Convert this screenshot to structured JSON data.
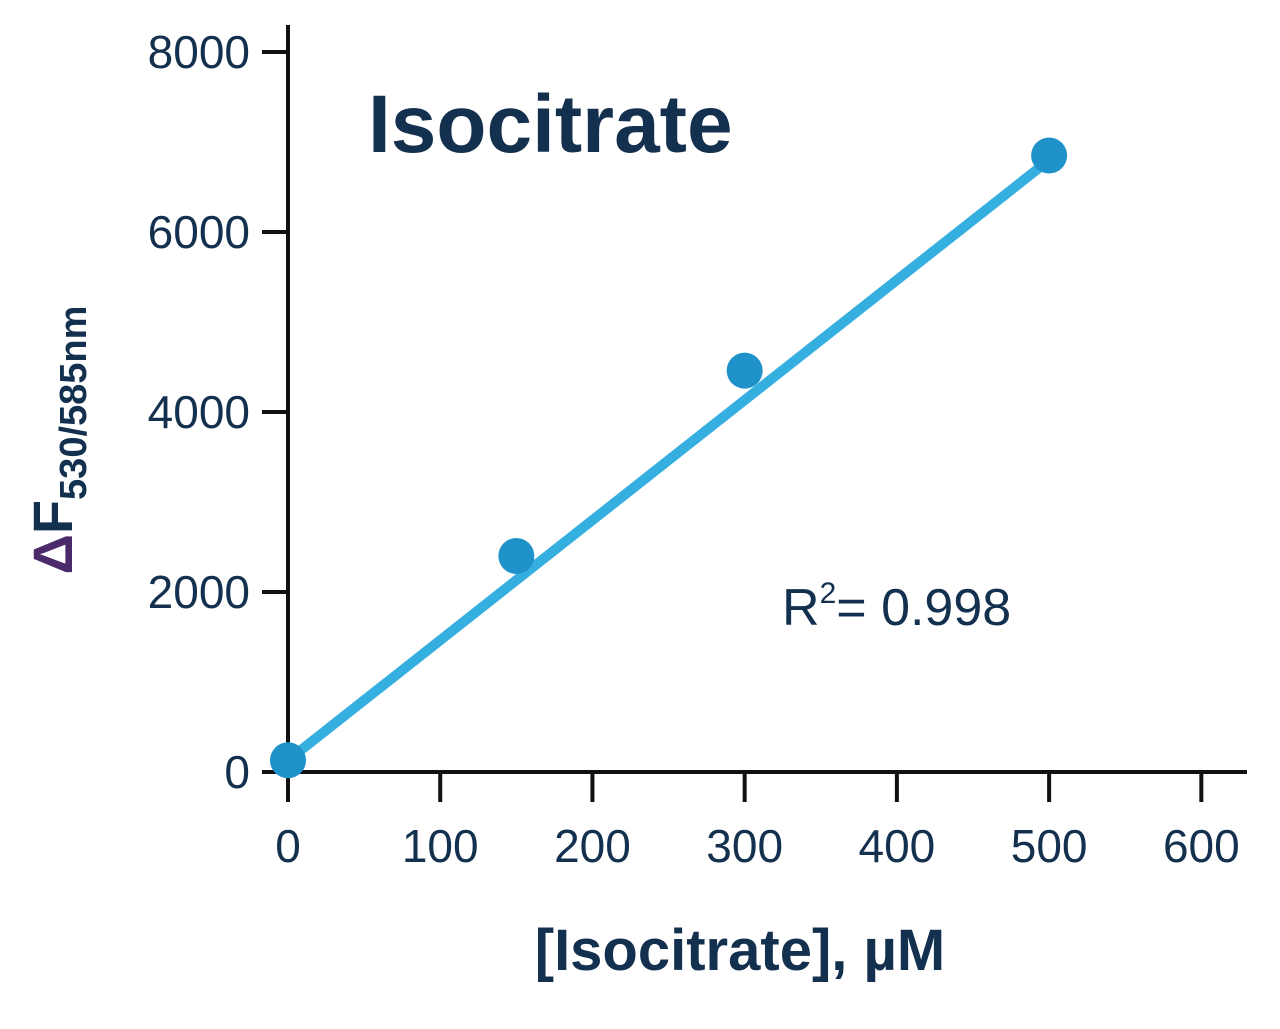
{
  "chart_data": {
    "type": "scatter",
    "title": "Isocitrate",
    "x_label": "[Isocitrate], µM",
    "y_label": {
      "symbol": "Δ",
      "text": "F",
      "subscript": "530/585nm"
    },
    "annotation": {
      "base": "R",
      "superscript": "2",
      "text": "= 0.998"
    },
    "x": [
      0,
      150,
      300,
      500
    ],
    "values": [
      130,
      2400,
      4460,
      6850
    ],
    "color": "#1f93c9",
    "fit": {
      "x": [
        0,
        500
      ],
      "values": [
        130,
        6800
      ],
      "color": "#35aee0"
    },
    "xlim": [
      0,
      630
    ],
    "xticks": [
      0,
      100,
      200,
      300,
      400,
      500,
      600
    ],
    "ylim": [
      0,
      8300
    ],
    "yticks": [
      0,
      2000,
      4000,
      6000,
      8000
    ]
  }
}
